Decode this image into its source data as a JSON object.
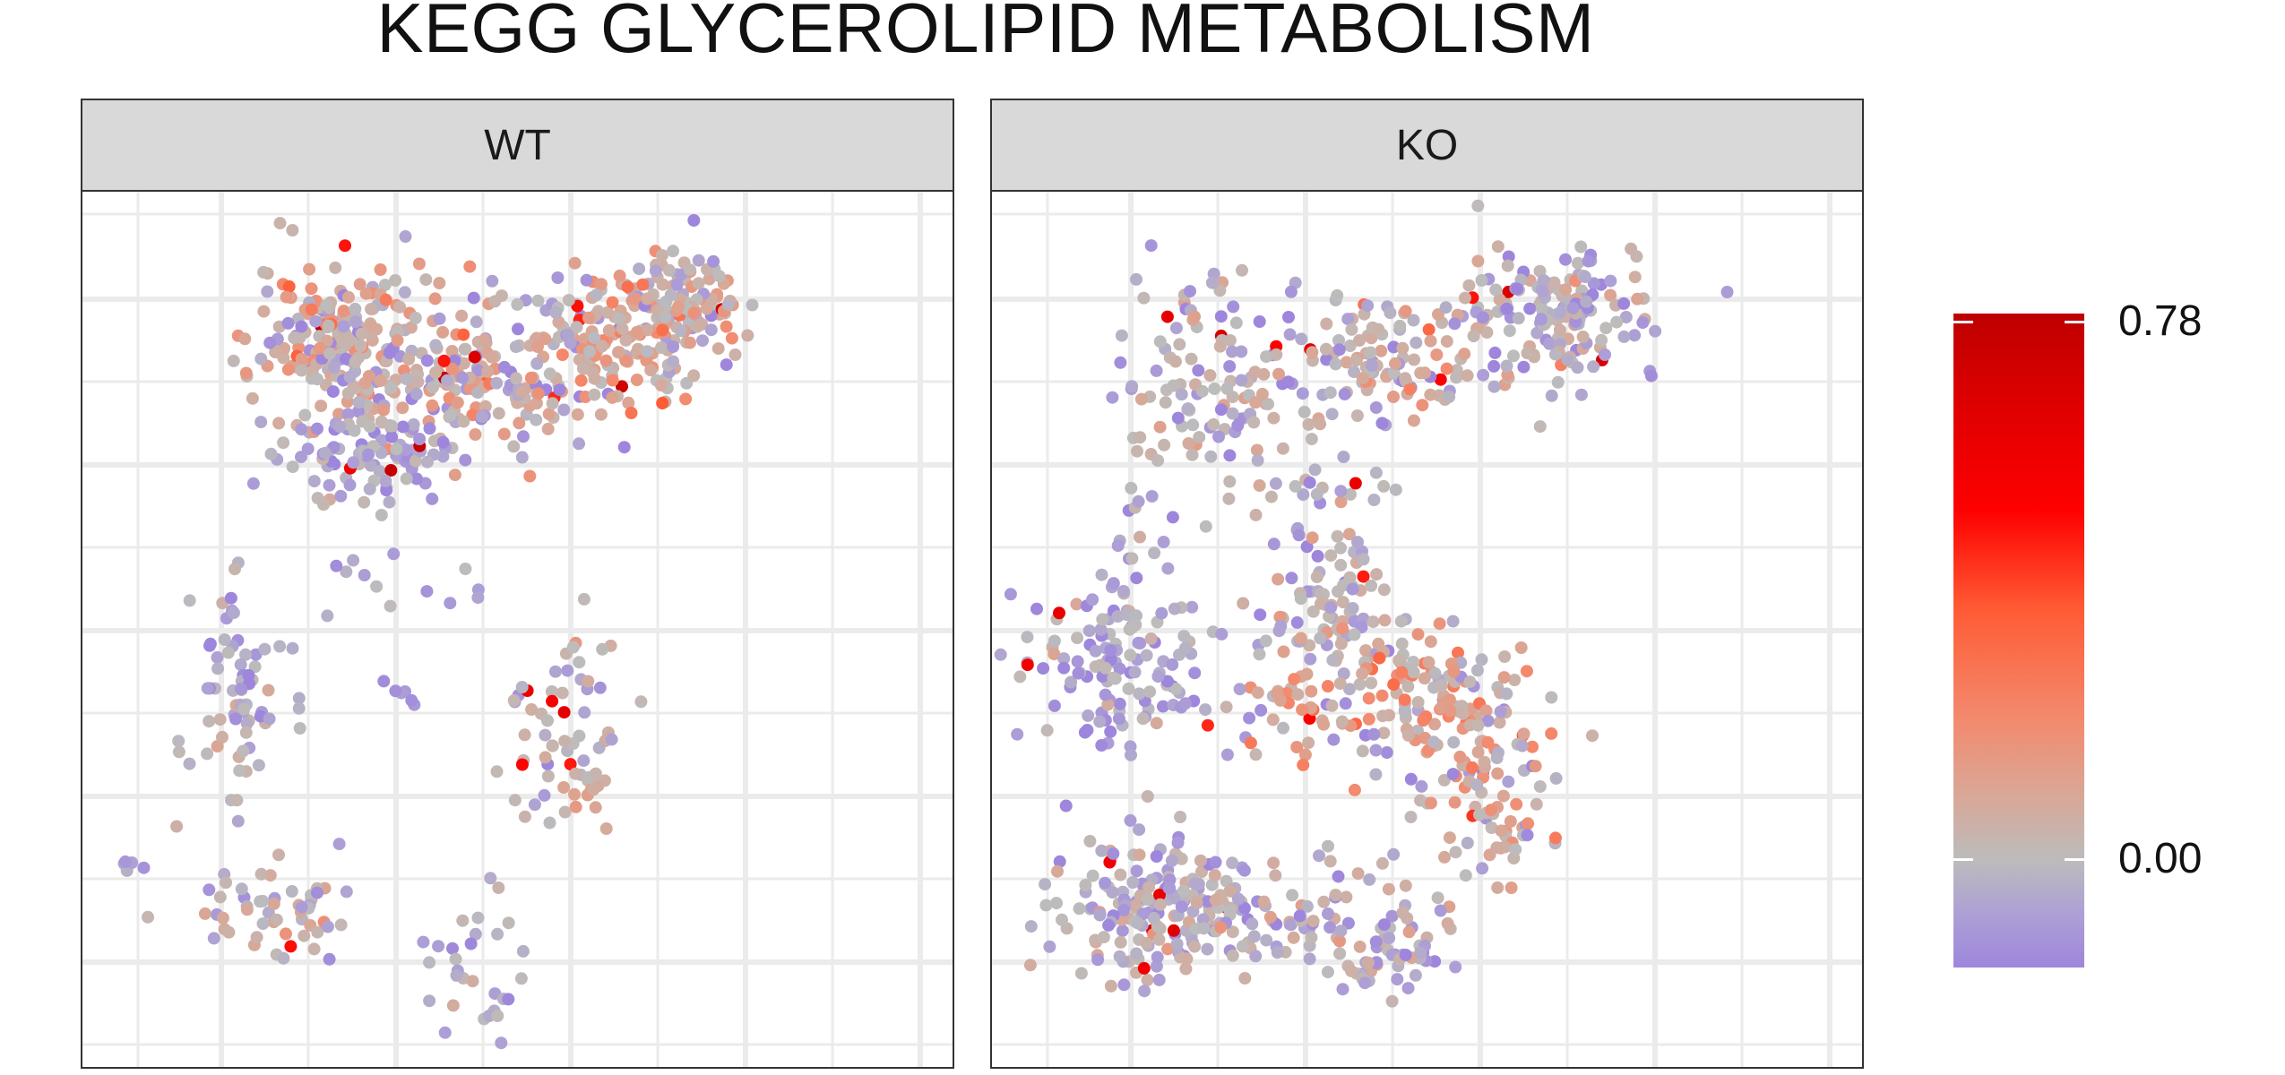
{
  "chart_data": {
    "type": "scatter",
    "title": "KEGG GLYCEROLIPID METABOLISM",
    "xlabel": "",
    "ylabel": "",
    "grid": true,
    "legend_position": "right",
    "facets": [
      "WT",
      "KO"
    ],
    "color_scale": {
      "min": 0.0,
      "max": 0.78,
      "labels": [
        "0.78",
        "0.00"
      ],
      "low_color": "#9e86dc",
      "mid_color": "#bcbcbc",
      "high_color": "#be0000"
    },
    "clusters": {
      "WT": [
        {
          "cx": 0.3,
          "cy": 0.83,
          "sx": 0.045,
          "sy": 0.045,
          "n": 210,
          "cmean": 0.22,
          "cspread": 0.22
        },
        {
          "cx": 0.45,
          "cy": 0.79,
          "sx": 0.07,
          "sy": 0.04,
          "n": 200,
          "cmean": 0.2,
          "cspread": 0.22
        },
        {
          "cx": 0.62,
          "cy": 0.83,
          "sx": 0.05,
          "sy": 0.04,
          "n": 150,
          "cmean": 0.24,
          "cspread": 0.22
        },
        {
          "cx": 0.7,
          "cy": 0.87,
          "sx": 0.035,
          "sy": 0.03,
          "n": 90,
          "cmean": 0.25,
          "cspread": 0.2
        },
        {
          "cx": 0.33,
          "cy": 0.7,
          "sx": 0.05,
          "sy": 0.03,
          "n": 90,
          "cmean": 0.1,
          "cspread": 0.12
        },
        {
          "cx": 0.35,
          "cy": 0.55,
          "sx": 0.07,
          "sy": 0.03,
          "n": 14,
          "cmean": 0.08,
          "cspread": 0.1
        },
        {
          "cx": 0.17,
          "cy": 0.43,
          "sx": 0.03,
          "sy": 0.06,
          "n": 70,
          "cmean": 0.12,
          "cspread": 0.14
        },
        {
          "cx": 0.55,
          "cy": 0.4,
          "sx": 0.04,
          "sy": 0.05,
          "n": 45,
          "cmean": 0.14,
          "cspread": 0.16
        },
        {
          "cx": 0.57,
          "cy": 0.32,
          "sx": 0.04,
          "sy": 0.03,
          "n": 25,
          "cmean": 0.2,
          "cspread": 0.18
        },
        {
          "cx": 0.22,
          "cy": 0.18,
          "sx": 0.05,
          "sy": 0.03,
          "n": 55,
          "cmean": 0.16,
          "cspread": 0.16
        },
        {
          "cx": 0.45,
          "cy": 0.12,
          "sx": 0.03,
          "sy": 0.04,
          "n": 30,
          "cmean": 0.12,
          "cspread": 0.14
        },
        {
          "cx": 0.05,
          "cy": 0.23,
          "sx": 0.01,
          "sy": 0.005,
          "n": 5,
          "cmean": 0.05,
          "cspread": 0.05
        },
        {
          "cx": 0.37,
          "cy": 0.43,
          "sx": 0.01,
          "sy": 0.01,
          "n": 6,
          "cmean": 0.05,
          "cspread": 0.05
        }
      ],
      "KO": [
        {
          "cx": 0.25,
          "cy": 0.77,
          "sx": 0.05,
          "sy": 0.07,
          "n": 120,
          "cmean": 0.16,
          "cspread": 0.18
        },
        {
          "cx": 0.45,
          "cy": 0.81,
          "sx": 0.06,
          "sy": 0.04,
          "n": 120,
          "cmean": 0.18,
          "cspread": 0.2
        },
        {
          "cx": 0.65,
          "cy": 0.86,
          "sx": 0.06,
          "sy": 0.04,
          "n": 160,
          "cmean": 0.14,
          "cspread": 0.16
        },
        {
          "cx": 0.4,
          "cy": 0.66,
          "sx": 0.03,
          "sy": 0.02,
          "n": 20,
          "cmean": 0.12,
          "cspread": 0.14
        },
        {
          "cx": 0.39,
          "cy": 0.53,
          "sx": 0.04,
          "sy": 0.04,
          "n": 90,
          "cmean": 0.14,
          "cspread": 0.16
        },
        {
          "cx": 0.15,
          "cy": 0.46,
          "sx": 0.05,
          "sy": 0.07,
          "n": 150,
          "cmean": 0.1,
          "cspread": 0.14
        },
        {
          "cx": 0.45,
          "cy": 0.42,
          "sx": 0.09,
          "sy": 0.035,
          "n": 160,
          "cmean": 0.26,
          "cspread": 0.22
        },
        {
          "cx": 0.57,
          "cy": 0.32,
          "sx": 0.04,
          "sy": 0.05,
          "n": 90,
          "cmean": 0.24,
          "cspread": 0.22
        },
        {
          "cx": 0.19,
          "cy": 0.18,
          "sx": 0.06,
          "sy": 0.04,
          "n": 200,
          "cmean": 0.14,
          "cspread": 0.16
        },
        {
          "cx": 0.4,
          "cy": 0.17,
          "sx": 0.08,
          "sy": 0.035,
          "n": 80,
          "cmean": 0.16,
          "cspread": 0.18
        },
        {
          "cx": 0.43,
          "cy": 0.12,
          "sx": 0.05,
          "sy": 0.02,
          "n": 40,
          "cmean": 0.12,
          "cspread": 0.14
        }
      ]
    }
  }
}
